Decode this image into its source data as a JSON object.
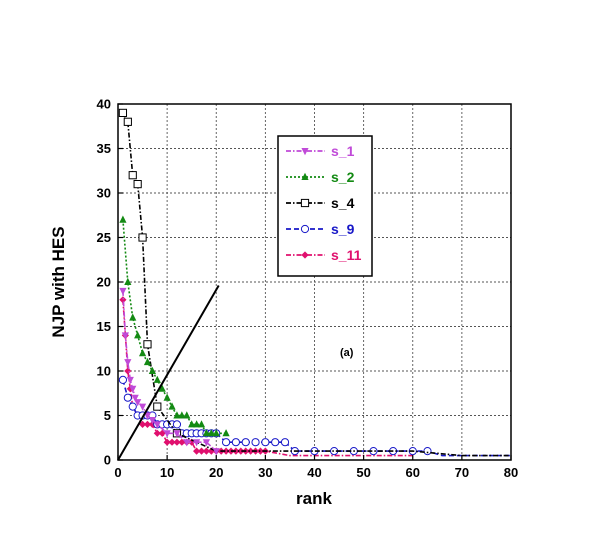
{
  "chart_data": {
    "type": "scatter",
    "title": "",
    "xlabel": "rank",
    "ylabel": "NJP with HES",
    "xlim": [
      0,
      80
    ],
    "ylim": [
      0,
      40
    ],
    "xticks": [
      0,
      10,
      20,
      30,
      40,
      50,
      60,
      70,
      80
    ],
    "yticks": [
      0,
      5,
      10,
      15,
      20,
      25,
      30,
      35,
      40
    ],
    "grid": true,
    "legend_position": "top-center",
    "annotation": "(a)",
    "reference_line": {
      "x": [
        0,
        20.5
      ],
      "y": [
        0,
        19.6
      ],
      "color": "#000000"
    },
    "series": [
      {
        "name": "s_1",
        "color": "#c04ad8",
        "marker": "triangle-down",
        "line": "dash-dot",
        "x": [
          1,
          1.5,
          2,
          2.5,
          3,
          3.5,
          4,
          5,
          6,
          7,
          8,
          10,
          12,
          14,
          16,
          18,
          20
        ],
        "y": [
          19,
          14,
          11,
          9,
          8,
          7,
          6.5,
          6,
          5,
          4.5,
          4,
          3,
          3,
          2,
          2,
          2,
          1
        ]
      },
      {
        "name": "s_2",
        "color": "#138a13",
        "marker": "triangle-up",
        "line": "dotted",
        "x": [
          1,
          2,
          3,
          4,
          5,
          6,
          7,
          8,
          9,
          10,
          11,
          12,
          13,
          14,
          15,
          16,
          17,
          18,
          19,
          20,
          22
        ],
        "y": [
          27,
          20,
          16,
          14,
          12,
          11,
          10,
          9,
          8,
          7,
          6,
          5,
          5,
          5,
          4,
          4,
          4,
          3,
          3,
          3,
          3
        ]
      },
      {
        "name": "s_4",
        "color": "#000000",
        "marker": "square-open",
        "line": "dash-dot",
        "x": [
          1,
          2,
          3,
          4,
          5,
          6,
          8,
          12,
          16,
          20,
          25,
          30,
          40,
          50,
          60,
          70,
          80
        ],
        "y": [
          39,
          38,
          32,
          31,
          25,
          13,
          6,
          3,
          2,
          1,
          1,
          1,
          1,
          1,
          1,
          0.5,
          0.5
        ],
        "markers_at_indices": [
          0,
          1,
          2,
          3,
          4,
          5,
          6,
          7
        ]
      },
      {
        "name": "s_9",
        "color": "#1818c8",
        "marker": "circle-open",
        "line": "dashed",
        "x": [
          1,
          2,
          3,
          4,
          5,
          6,
          7,
          8,
          9,
          10,
          11,
          12,
          13,
          14,
          15,
          16,
          17,
          18,
          19,
          20,
          22,
          24,
          26,
          28,
          30,
          32,
          34,
          36,
          40,
          44,
          48,
          52,
          56,
          60,
          63,
          66,
          70,
          74,
          78,
          80
        ],
        "y": [
          9,
          7,
          6,
          5,
          5,
          5,
          5,
          4,
          4,
          4,
          4,
          4,
          3,
          3,
          3,
          3,
          3,
          3,
          3,
          3,
          2,
          2,
          2,
          2,
          2,
          2,
          2,
          1,
          1,
          1,
          1,
          1,
          1,
          1,
          1,
          0.5,
          0.5,
          0.5,
          0.5,
          0.5
        ],
        "markers_at_indices": [
          0,
          1,
          2,
          3,
          4,
          5,
          6,
          7,
          8,
          9,
          10,
          11,
          12,
          13,
          14,
          15,
          16,
          17,
          18,
          19,
          20,
          21,
          22,
          23,
          24,
          25,
          26,
          27,
          28,
          29,
          30,
          31,
          32,
          33,
          34
        ]
      },
      {
        "name": "s_11",
        "color": "#e0106e",
        "marker": "diamond",
        "line": "dash-dot",
        "x": [
          1,
          1.5,
          2,
          2.5,
          3,
          4,
          5,
          6,
          7,
          8,
          9,
          10,
          11,
          12,
          13,
          14,
          15,
          16,
          17,
          18,
          19,
          20,
          21,
          22,
          23,
          24,
          25,
          26,
          27,
          28,
          29,
          30,
          35,
          40,
          50,
          60
        ],
        "y": [
          18,
          14,
          10,
          8,
          6,
          5,
          4,
          4,
          4,
          3,
          3,
          2,
          2,
          2,
          2,
          2,
          2,
          1,
          1,
          1,
          1,
          1,
          1,
          1,
          1,
          1,
          1,
          1,
          1,
          1,
          1,
          1,
          0.5,
          0.5,
          0.5,
          0.5
        ],
        "markers_at_indices": [
          0,
          1,
          2,
          3,
          4,
          5,
          6,
          7,
          8,
          9,
          10,
          11,
          12,
          13,
          14,
          15,
          16,
          17,
          18,
          19,
          20,
          21,
          22,
          23,
          24,
          25,
          26,
          27,
          28,
          29,
          30,
          31
        ]
      }
    ]
  }
}
